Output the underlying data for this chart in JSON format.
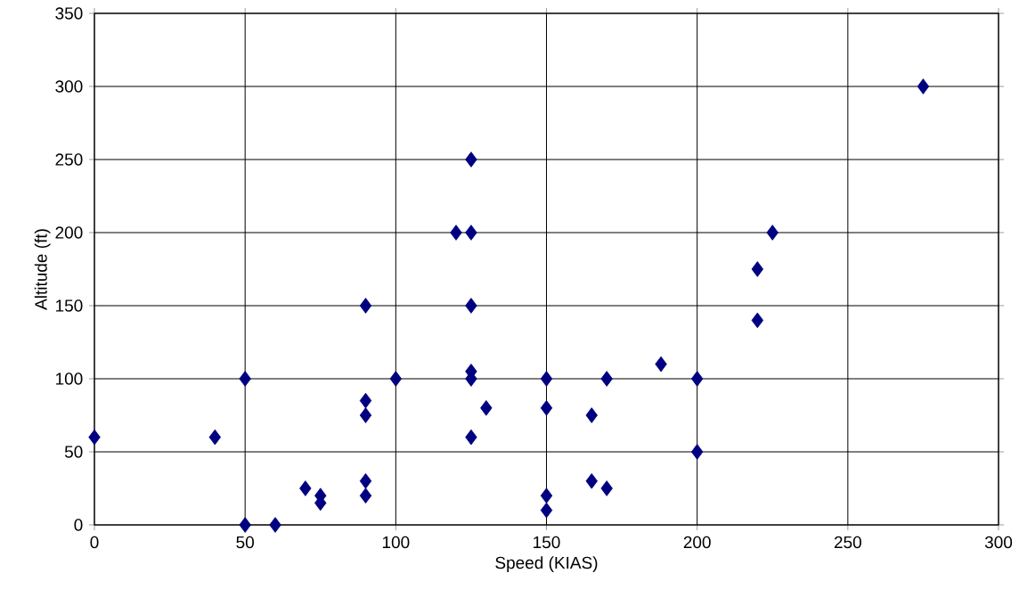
{
  "chart_data": {
    "type": "scatter",
    "xlabel": "Speed (KIAS)",
    "ylabel": "Altitude (ft)",
    "x": [
      0,
      40,
      50,
      50,
      60,
      70,
      75,
      75,
      90,
      90,
      90,
      90,
      90,
      100,
      120,
      125,
      125,
      125,
      125,
      125,
      125,
      130,
      150,
      150,
      150,
      150,
      165,
      165,
      170,
      170,
      188,
      200,
      200,
      220,
      220,
      225,
      275
    ],
    "values": [
      60,
      60,
      100,
      0,
      0,
      25,
      20,
      15,
      150,
      85,
      75,
      30,
      20,
      100,
      200,
      250,
      200,
      150,
      105,
      100,
      60,
      80,
      100,
      80,
      20,
      10,
      75,
      30,
      100,
      25,
      110,
      100,
      50,
      175,
      140,
      200,
      300
    ],
    "color": "#000080",
    "marker": "diamond",
    "grid": true,
    "xlim": [
      0,
      300
    ],
    "xticks": [
      0,
      50,
      100,
      150,
      200,
      250,
      300
    ],
    "ylim": [
      0,
      350
    ],
    "yticks": [
      0,
      50,
      100,
      150,
      200,
      250,
      300,
      350
    ]
  }
}
